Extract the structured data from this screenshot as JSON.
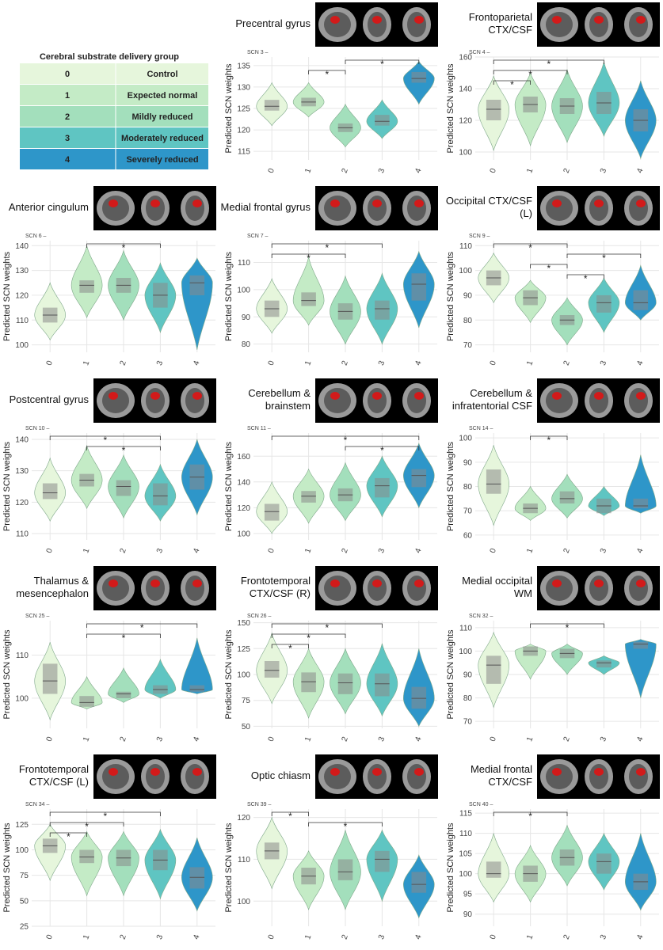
{
  "legend": {
    "title": "Cerebral substrate delivery group",
    "rows": [
      [
        "0",
        "Control"
      ],
      [
        "1",
        "Expected normal"
      ],
      [
        "2",
        "Mildly reduced"
      ],
      [
        "3",
        "Moderately reduced"
      ],
      [
        "4",
        "Severely reduced"
      ]
    ]
  },
  "group_colors": [
    "#e6f6dc",
    "#c4ebc6",
    "#a3dfbc",
    "#5fc5c2",
    "#2e96c9"
  ],
  "y_label": "Predicted SCN weights",
  "chart_data": [
    {
      "type": "violin",
      "title": [
        "Precentral gyrus"
      ],
      "scn": "SCN 3 –",
      "categories": [
        "0",
        "1",
        "2",
        "3",
        "4"
      ],
      "ylim": [
        113,
        137
      ],
      "yticks": [
        115,
        120,
        125,
        130,
        135
      ],
      "median": [
        125.5,
        126.5,
        120.5,
        122,
        132
      ],
      "q1": [
        124.5,
        125.5,
        119.5,
        121,
        131
      ],
      "q3": [
        127,
        127.5,
        121.5,
        123.5,
        133.5
      ],
      "min": [
        121,
        123,
        116,
        118,
        126
      ],
      "max": [
        131,
        131,
        126,
        127,
        136
      ],
      "brackets": [
        {
          "groups": [
            2,
            4
          ],
          "label": "*"
        },
        {
          "groups": [
            1,
            2
          ],
          "label": "*"
        }
      ]
    },
    {
      "type": "violin",
      "title": [
        "Frontoparietal",
        "CTX/CSF"
      ],
      "scn": "SCN 4 –",
      "categories": [
        "0",
        "1",
        "2",
        "3",
        "4"
      ],
      "ylim": [
        95,
        160
      ],
      "yticks": [
        100,
        120,
        140,
        160
      ],
      "median": [
        127,
        130,
        129,
        131,
        120
      ],
      "q1": [
        120,
        125,
        124,
        124,
        113
      ],
      "q3": [
        133,
        135,
        134,
        138,
        127
      ],
      "min": [
        101,
        104,
        106,
        110,
        96
      ],
      "max": [
        148,
        150,
        152,
        157,
        145
      ],
      "brackets": [
        {
          "groups": [
            0,
            3
          ],
          "label": "*"
        },
        {
          "groups": [
            0,
            2
          ],
          "label": "*"
        },
        {
          "groups": [
            0,
            1
          ],
          "label": "*"
        }
      ]
    },
    {
      "type": "violin",
      "title": [
        "Anterior cingulum"
      ],
      "scn": "SCN 6 –",
      "categories": [
        "0",
        "1",
        "2",
        "3",
        "4"
      ],
      "ylim": [
        97,
        142
      ],
      "yticks": [
        100,
        110,
        120,
        130,
        140
      ],
      "median": [
        112,
        124,
        124,
        120,
        125
      ],
      "q1": [
        109,
        121,
        121,
        115,
        120
      ],
      "q3": [
        115,
        126,
        127,
        125,
        128
      ],
      "min": [
        102,
        111,
        110,
        105,
        98
      ],
      "max": [
        125,
        140,
        138,
        133,
        135
      ],
      "brackets": [
        {
          "groups": [
            1,
            3
          ],
          "label": "*"
        }
      ]
    },
    {
      "type": "violin",
      "title": [
        "Medial frontal gyrus"
      ],
      "scn": "SCN 7 –",
      "categories": [
        "0",
        "1",
        "2",
        "3",
        "4"
      ],
      "ylim": [
        77,
        118
      ],
      "yticks": [
        80,
        90,
        100,
        110
      ],
      "median": [
        93,
        96,
        92,
        93,
        102
      ],
      "q1": [
        90,
        94,
        89,
        89,
        96
      ],
      "q3": [
        96,
        99,
        95,
        96,
        106
      ],
      "min": [
        84,
        87,
        80,
        80,
        86
      ],
      "max": [
        104,
        112,
        105,
        106,
        114
      ],
      "brackets": [
        {
          "groups": [
            0,
            3
          ],
          "label": "*"
        },
        {
          "groups": [
            0,
            2
          ],
          "label": "*"
        }
      ]
    },
    {
      "type": "violin",
      "title": [
        "Occipital CTX/CSF",
        "(L)"
      ],
      "scn": "SCN 9 –",
      "categories": [
        "0",
        "1",
        "2",
        "3",
        "4"
      ],
      "ylim": [
        67,
        112
      ],
      "yticks": [
        70,
        80,
        90,
        100,
        110
      ],
      "median": [
        97,
        89,
        80,
        87,
        87
      ],
      "q1": [
        94,
        86,
        78,
        83,
        84
      ],
      "q3": [
        100,
        92,
        82,
        90,
        92
      ],
      "min": [
        87,
        79,
        70,
        75,
        80
      ],
      "max": [
        107,
        96,
        89,
        97,
        102
      ],
      "brackets": [
        {
          "groups": [
            0,
            2
          ],
          "label": "*"
        },
        {
          "groups": [
            2,
            4
          ],
          "label": "*"
        },
        {
          "groups": [
            1,
            2
          ],
          "label": "*"
        },
        {
          "groups": [
            2,
            3
          ],
          "label": "*"
        }
      ]
    },
    {
      "type": "violin",
      "title": [
        "Postcentral gyrus"
      ],
      "scn": "SCN 10 –",
      "categories": [
        "0",
        "1",
        "2",
        "3",
        "4"
      ],
      "ylim": [
        108,
        142
      ],
      "yticks": [
        110,
        120,
        130,
        140
      ],
      "median": [
        123,
        127,
        125,
        122,
        128
      ],
      "q1": [
        121,
        125,
        122,
        119,
        124
      ],
      "q3": [
        126,
        129,
        127,
        126,
        132
      ],
      "min": [
        114,
        118,
        115,
        114,
        116
      ],
      "max": [
        134,
        138,
        135,
        132,
        140
      ],
      "brackets": [
        {
          "groups": [
            0,
            3
          ],
          "label": "*"
        },
        {
          "groups": [
            1,
            3
          ],
          "label": "*"
        }
      ]
    },
    {
      "type": "violin",
      "title": [
        "Cerebellum &",
        "brainstem"
      ],
      "scn": "SCN 11 –",
      "categories": [
        "0",
        "1",
        "2",
        "3",
        "4"
      ],
      "ylim": [
        95,
        178
      ],
      "yticks": [
        100,
        120,
        140,
        160
      ],
      "median": [
        117,
        129,
        130,
        137,
        145
      ],
      "q1": [
        110,
        124,
        125,
        128,
        136
      ],
      "q3": [
        123,
        133,
        135,
        143,
        150
      ],
      "min": [
        100,
        108,
        110,
        113,
        120
      ],
      "max": [
        140,
        150,
        155,
        160,
        170
      ],
      "brackets": [
        {
          "groups": [
            0,
            4
          ],
          "label": "*"
        },
        {
          "groups": [
            2,
            4
          ],
          "label": "*"
        }
      ]
    },
    {
      "type": "violin",
      "title": [
        "Cerebellum &",
        "infratentorial CSF"
      ],
      "scn": "SCN 14 –",
      "categories": [
        "0",
        "1",
        "2",
        "3",
        "4"
      ],
      "ylim": [
        58,
        102
      ],
      "yticks": [
        60,
        70,
        80,
        90,
        100
      ],
      "median": [
        81,
        71,
        75,
        72,
        72
      ],
      "q1": [
        77,
        69,
        73,
        69,
        71
      ],
      "q3": [
        87,
        73,
        78,
        75,
        75
      ],
      "min": [
        64,
        66,
        67,
        68,
        69
      ],
      "max": [
        97,
        80,
        85,
        80,
        93
      ],
      "brackets": [
        {
          "groups": [
            1,
            2
          ],
          "label": "*"
        }
      ]
    },
    {
      "type": "violin",
      "title": [
        "Thalamus &",
        "mesencephalon"
      ],
      "scn": "SCN 25 –",
      "categories": [
        "0",
        "1",
        "2",
        "3",
        "4"
      ],
      "ylim": [
        93,
        118
      ],
      "yticks": [
        100,
        110
      ],
      "median": [
        104,
        99,
        101,
        102,
        102
      ],
      "q1": [
        101,
        98,
        100,
        101,
        101.5
      ],
      "q3": [
        108,
        100.5,
        101.5,
        103,
        103
      ],
      "min": [
        95,
        97.5,
        99,
        100,
        101
      ],
      "max": [
        113,
        105,
        107,
        109,
        114
      ],
      "brackets": [
        {
          "groups": [
            1,
            4
          ],
          "label": "*"
        },
        {
          "groups": [
            1,
            3
          ],
          "label": "*"
        }
      ]
    },
    {
      "type": "violin",
      "title": [
        "Frontotemporal",
        "CTX/CSF (R)"
      ],
      "scn": "SCN 26 –",
      "categories": [
        "0",
        "1",
        "2",
        "3",
        "4"
      ],
      "ylim": [
        48,
        152
      ],
      "yticks": [
        50,
        75,
        100,
        125,
        150
      ],
      "median": [
        104,
        93,
        92,
        91,
        77
      ],
      "q1": [
        97,
        83,
        81,
        79,
        67
      ],
      "q3": [
        113,
        102,
        101,
        101,
        88
      ],
      "min": [
        72,
        58,
        62,
        60,
        50
      ],
      "max": [
        140,
        125,
        125,
        130,
        125
      ],
      "brackets": [
        {
          "groups": [
            0,
            3
          ],
          "label": "*"
        },
        {
          "groups": [
            0,
            2
          ],
          "label": "*"
        },
        {
          "groups": [
            0,
            1
          ],
          "label": "*"
        }
      ]
    },
    {
      "type": "violin",
      "title": [
        "Medial occipital",
        "WM"
      ],
      "scn": "SCN 32 –",
      "categories": [
        "0",
        "1",
        "2",
        "3",
        "4"
      ],
      "ylim": [
        67,
        113
      ],
      "yticks": [
        70,
        80,
        90,
        100,
        110
      ],
      "median": [
        94,
        100,
        99,
        95,
        103
      ],
      "q1": [
        86,
        98,
        97,
        93,
        101
      ],
      "q3": [
        98,
        102,
        101,
        96,
        104
      ],
      "min": [
        76,
        88,
        90,
        90,
        80
      ],
      "max": [
        108,
        103,
        103,
        98,
        105
      ],
      "brackets": [
        {
          "groups": [
            1,
            3
          ],
          "label": "*"
        }
      ]
    },
    {
      "type": "violin",
      "title": [
        "Frontotemporal",
        "CTX/CSF (L)"
      ],
      "scn": "SCN 34 –",
      "categories": [
        "0",
        "1",
        "2",
        "3",
        "4"
      ],
      "ylim": [
        25,
        140
      ],
      "yticks": [
        25,
        50,
        75,
        100,
        125
      ],
      "median": [
        104,
        93,
        92,
        90,
        73
      ],
      "q1": [
        97,
        87,
        84,
        80,
        62
      ],
      "q3": [
        111,
        100,
        100,
        100,
        83
      ],
      "min": [
        70,
        55,
        55,
        52,
        40
      ],
      "max": [
        125,
        118,
        118,
        120,
        112
      ],
      "brackets": [
        {
          "groups": [
            0,
            3
          ],
          "label": "*"
        },
        {
          "groups": [
            0,
            2
          ],
          "label": "*"
        },
        {
          "groups": [
            0,
            1
          ],
          "label": "*"
        }
      ]
    },
    {
      "type": "violin",
      "title": [
        "Optic chiasm"
      ],
      "scn": "SCN 39 –",
      "categories": [
        "0",
        "1",
        "2",
        "3",
        "4"
      ],
      "ylim": [
        94,
        122
      ],
      "yticks": [
        100,
        110,
        120
      ],
      "median": [
        112,
        106,
        107,
        110,
        104
      ],
      "q1": [
        110,
        104,
        105,
        107,
        102
      ],
      "q3": [
        114,
        108,
        110,
        112,
        107
      ],
      "min": [
        103,
        98,
        98,
        100,
        96
      ],
      "max": [
        120,
        112,
        117,
        117,
        111
      ],
      "brackets": [
        {
          "groups": [
            0,
            1
          ],
          "label": "*"
        },
        {
          "groups": [
            1,
            3
          ],
          "label": "*"
        }
      ]
    },
    {
      "type": "violin",
      "title": [
        "Medial frontal",
        "CTX/CSF"
      ],
      "scn": "SCN 40 –",
      "categories": [
        "0",
        "1",
        "2",
        "3",
        "4"
      ],
      "ylim": [
        87,
        116
      ],
      "yticks": [
        90,
        95,
        100,
        105,
        110,
        115
      ],
      "median": [
        100,
        100,
        104,
        103,
        98
      ],
      "q1": [
        99,
        98,
        102,
        100,
        96
      ],
      "q3": [
        103,
        102,
        106,
        105,
        100
      ],
      "min": [
        93,
        93,
        97,
        96,
        91
      ],
      "max": [
        110,
        107,
        112,
        110,
        110
      ],
      "brackets": [
        {
          "groups": [
            0,
            2
          ],
          "label": "*"
        }
      ]
    }
  ]
}
